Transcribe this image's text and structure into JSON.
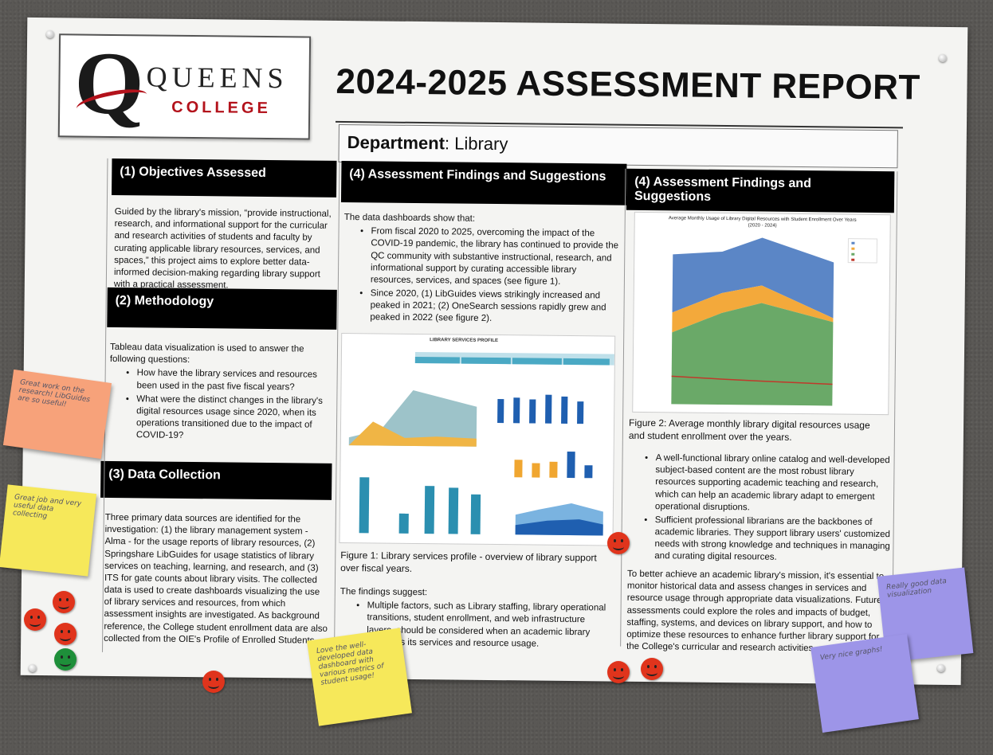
{
  "logo": {
    "letter": "Q",
    "line1": "QUEENS",
    "line2": "COLLEGE"
  },
  "title": "2024-2025 ASSESSMENT REPORT",
  "department": {
    "label": "Department",
    "value": ": Library"
  },
  "sections": {
    "objectives": {
      "header": "(1) Objectives Assessed",
      "text": "Guided by the library's mission, “provide instructional, research, and informational support for the curricular and research activities of students and faculty by curating applicable library resources, services, and spaces,” this project aims to explore better data-informed decision-making regarding library support with a practical assessment."
    },
    "methodology": {
      "header": "(2) Methodology",
      "intro": "Tableau data visualization is used to answer the following questions:",
      "bullets": [
        "How have the library services and resources been used in the past five fiscal years?",
        "What were the distinct changes in the library's digital resources usage since 2020, when its operations transitioned due to the impact of COVID-19?"
      ]
    },
    "data_collection": {
      "header": "(3) Data Collection",
      "text": "Three primary data sources are identified for the investigation: (1) the library management system - Alma - for the usage reports of library resources, (2) Springshare LibGuides for usage statistics of library services on teaching, learning, and research, and (3) ITS for gate counts about library visits. The collected data is used to create dashboards visualizing the use of library services and resources, from which assessment insights are investigated. As background reference, the College student enrollment data are also collected from the OIE's Profile of Enrolled Students."
    },
    "findings1": {
      "header": "(4) Assessment Findings and Suggestions",
      "intro": "The data dashboards show that:",
      "bullets": [
        "From fiscal 2020 to 2025, overcoming the impact of the COVID-19 pandemic, the library has continued to provide the QC community with substantive instructional, research, and informational support by curating accessible library resources, services, and spaces (see figure 1).",
        "Since 2020, (1) LibGuides views strikingly increased and peaked in 2021; (2) OneSearch sessions rapidly grew and peaked in 2022 (see figure 2)."
      ],
      "figure_title": "LIBRARY SERVICES PROFILE",
      "figure_caption": "Figure 1: Library services profile - overview of library support over fiscal years.",
      "findings_intro": "The findings suggest:",
      "findings_bullets": [
        "Multiple factors, such as Library staffing, library operational transitions, student enrollment, and web infrastructure layers, should be considered when an academic library assesses its services and resource usage."
      ]
    },
    "findings2": {
      "header": "(4) Assessment Findings and Suggestions",
      "chart_title": "Average Monthly Usage of Library Digital Resources with Student Enrollment Over Years",
      "chart_subtitle": "(2020 - 2024)",
      "figure_caption": "Figure 2: Average monthly library digital resources usage and student enrollment over the years.",
      "bullets": [
        "A well-functional library online catalog and well-developed subject-based content are the most robust library resources supporting academic teaching and research, which can help an academic library adapt to emergent operational disruptions.",
        "Sufficient professional librarians are the backbones of academic libraries. They support library users' customized needs with strong knowledge and techniques in managing and curating digital resources."
      ],
      "closing": "To better achieve an academic library's mission, it's essential to monitor historical data and assess changes in services and resource usage through appropriate data visualizations. Future assessments could explore the roles and impacts of budget, staffing, systems, and devices on library support, and how to optimize these resources to enhance further library support for the College's curricular and research activities."
    }
  },
  "stickies": [
    {
      "text": "Great work on the research! LibGuides are so useful!",
      "color": "#f7a27a"
    },
    {
      "text": "Great job and very useful data collecting",
      "color": "#f6e85a"
    },
    {
      "text": "Love the well-developed data dashboard with various metrics of student usage!",
      "color": "#f6e85a"
    },
    {
      "text": "Really good data visualization",
      "color": "#9d95e8"
    },
    {
      "text": "Very nice graphs!",
      "color": "#9d95e8"
    }
  ],
  "colors": {
    "smiley_red": "#e0341c",
    "smiley_green": "#1e8f3a",
    "header_bg": "#000000",
    "area_blue": "#5b86c6",
    "area_orange": "#f3a93b",
    "area_green": "#6aa968",
    "enroll_red": "#c0392b"
  }
}
